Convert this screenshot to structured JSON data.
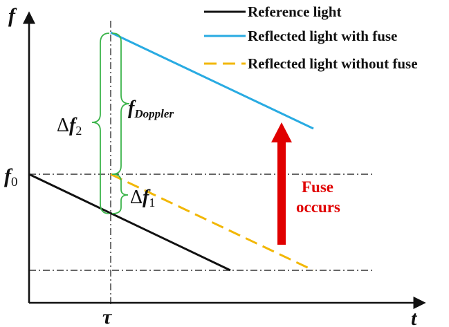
{
  "axes": {
    "y_label": "f",
    "x_label": "t",
    "f0_label": "f",
    "f0_subscript": "0",
    "tau_label": "τ"
  },
  "legend": [
    {
      "label": "Reference light",
      "color": "#111111",
      "style": "solid"
    },
    {
      "label": "Reflected light with fuse",
      "color": "#29abe2",
      "style": "solid"
    },
    {
      "label": "Reflected light without fuse",
      "color": "#f2b705",
      "style": "dashed"
    }
  ],
  "annotations": {
    "delta_f2_symbol": "Δ",
    "delta_f2_var": "f",
    "delta_f2_sub": "2",
    "delta_f1_symbol": "Δ",
    "delta_f1_var": "f",
    "delta_f1_sub": "1",
    "doppler_var": "f",
    "doppler_sub": "Doppler",
    "fuse_line1": "Fuse",
    "fuse_line2": "occurs"
  },
  "colors": {
    "reference": "#111111",
    "with_fuse": "#29abe2",
    "without_fuse": "#f2b705",
    "braces": "#3cb44b",
    "arrow": "#e00000",
    "guides": "#333333"
  }
}
